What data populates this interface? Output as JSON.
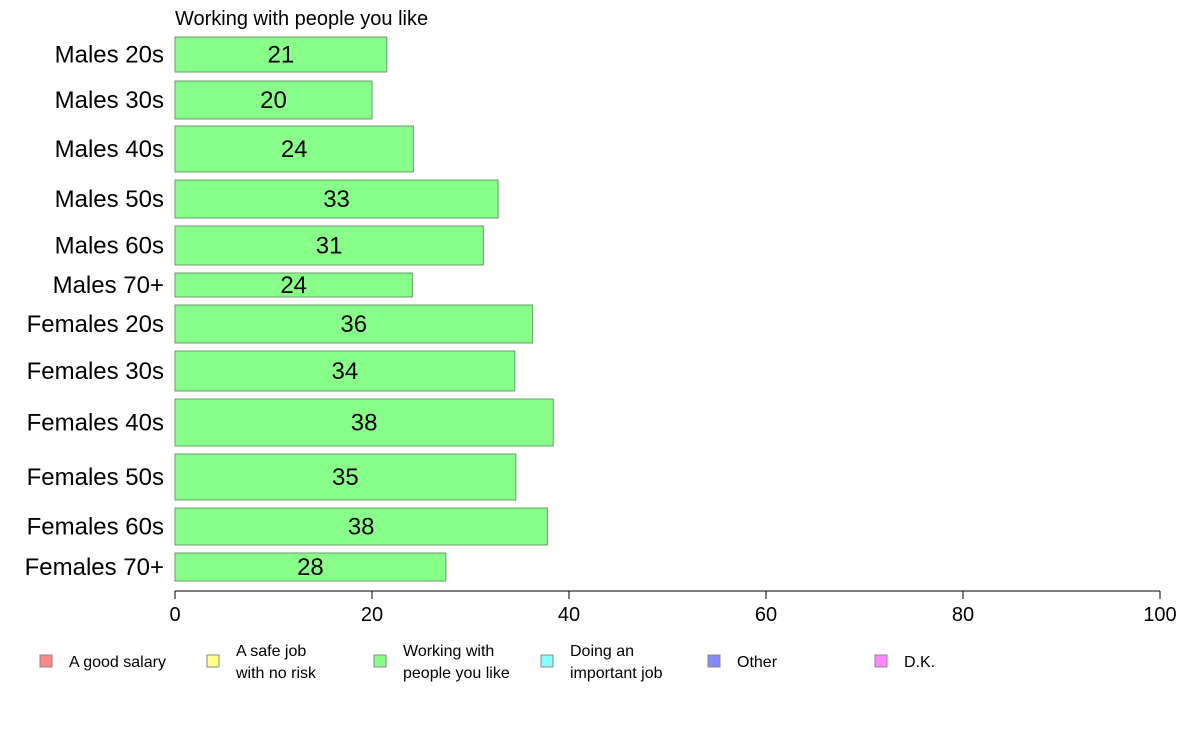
{
  "chart_data": {
    "type": "bar",
    "orientation": "horizontal",
    "title": "Working with people you like",
    "categories": [
      "Males 20s",
      "Males 30s",
      "Males 40s",
      "Males 50s",
      "Males 60s",
      "Males 70+",
      "Females 20s",
      "Females 30s",
      "Females 40s",
      "Females 50s",
      "Females 60s",
      "Females 70+"
    ],
    "series": [
      {
        "name": "Working with people you like",
        "color": "#88ff88",
        "values": [
          21.5,
          20,
          24.2,
          32.8,
          31.3,
          24.1,
          36.3,
          34.5,
          38.4,
          34.6,
          37.8,
          27.5
        ],
        "labels": [
          "21",
          "20",
          "24",
          "33",
          "31",
          "24",
          "36",
          "34",
          "38",
          "35",
          "38",
          "28"
        ]
      }
    ],
    "xlim": [
      0,
      100
    ],
    "xticks": [
      "0",
      "20",
      "40",
      "60",
      "80",
      "100"
    ],
    "grid": false,
    "legend_position": "bottom",
    "legend": [
      {
        "label": [
          "A good salary"
        ],
        "color": "#ff8888"
      },
      {
        "label": [
          "A safe job",
          "with no risk"
        ],
        "color": "#ffff88"
      },
      {
        "label": [
          "Working with",
          "people you like"
        ],
        "color": "#88ff88"
      },
      {
        "label": [
          "Doing an",
          "important job"
        ],
        "color": "#88ffff"
      },
      {
        "label": [
          "Other"
        ],
        "color": "#8888ff"
      },
      {
        "label": [
          "D.K."
        ],
        "color": "#ff88ff"
      }
    ]
  }
}
